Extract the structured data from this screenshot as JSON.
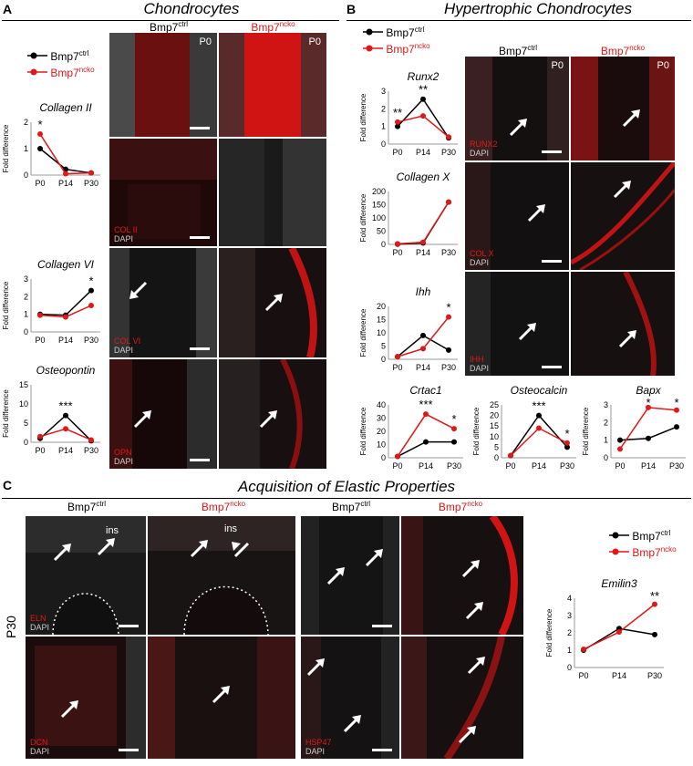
{
  "panels": {
    "A": {
      "letter": "A",
      "title": "Chondrocytes",
      "ctrl_label": "Bmp7",
      "ctrl_sup": "ctrl",
      "ncko_label": "Bmp7",
      "ncko_sup": "ncko",
      "p0": "P0"
    },
    "B": {
      "letter": "B",
      "title": "Hypertrophic Chondrocytes",
      "ctrl_label": "Bmp7",
      "ctrl_sup": "ctrl",
      "ncko_label": "Bmp7",
      "ncko_sup": "ncko",
      "p0": "P0"
    },
    "C": {
      "letter": "C",
      "title": "Acquisition of Elastic Properties",
      "ctrl_label": "Bmp7",
      "ctrl_sup": "ctrl",
      "ncko_label": "Bmp7",
      "ncko_sup": "ncko",
      "side": "P30",
      "ins": "ins"
    }
  },
  "legend": {
    "ctrl": "Bmp7",
    "ctrl_sup": "ctrl",
    "ncko": "Bmp7",
    "ncko_sup": "ncko"
  },
  "stains": {
    "col2": "COL II",
    "col6": "COL VI",
    "opn": "OPN",
    "runx2": "RUNX2",
    "col10": "COL X",
    "ihh": "IHH",
    "eln": "ELN",
    "dcn": "DCN",
    "hsp47": "HSP47",
    "dapi": "DAPI"
  },
  "colors": {
    "ctrl": "#000000",
    "ncko": "#e01818"
  },
  "chart_data": [
    {
      "id": "col2",
      "type": "line",
      "title": "Collagen II",
      "ylabel": "Fold difference",
      "categories": [
        "P0",
        "P14",
        "P30"
      ],
      "ylim": [
        0,
        2
      ],
      "yticks": [
        0,
        1,
        2
      ],
      "series": [
        {
          "name": "Bmp7ctrl",
          "values": [
            1.0,
            0.22,
            0.08
          ]
        },
        {
          "name": "Bmp7ncko",
          "values": [
            1.55,
            0.05,
            0.08
          ]
        }
      ],
      "annotations": [
        {
          "at": "P0",
          "text": "*"
        }
      ]
    },
    {
      "id": "col6",
      "type": "line",
      "title": "Collagen VI",
      "ylabel": "Fold difference",
      "categories": [
        "P0",
        "P14",
        "P30"
      ],
      "ylim": [
        0,
        3
      ],
      "yticks": [
        0,
        1,
        2,
        3
      ],
      "series": [
        {
          "name": "Bmp7ctrl",
          "values": [
            1.0,
            0.95,
            2.35
          ]
        },
        {
          "name": "Bmp7ncko",
          "values": [
            0.95,
            0.85,
            1.5
          ]
        }
      ],
      "annotations": [
        {
          "at": "P30",
          "text": "*"
        }
      ]
    },
    {
      "id": "opn",
      "type": "line",
      "title": "Osteopontin",
      "ylabel": "Fold difference",
      "categories": [
        "P0",
        "P14",
        "P30"
      ],
      "ylim": [
        0,
        15
      ],
      "yticks": [
        0,
        5,
        10,
        15
      ],
      "series": [
        {
          "name": "Bmp7ctrl",
          "values": [
            1.0,
            7.0,
            0.4
          ]
        },
        {
          "name": "Bmp7ncko",
          "values": [
            1.5,
            3.5,
            0.6
          ]
        }
      ],
      "annotations": [
        {
          "at": "P14",
          "text": "***"
        }
      ]
    },
    {
      "id": "runx2",
      "type": "line",
      "title": "Runx2",
      "ylabel": "Fold difference",
      "categories": [
        "P0",
        "P14",
        "P30"
      ],
      "ylim": [
        0,
        3
      ],
      "yticks": [
        0,
        1,
        2,
        3
      ],
      "series": [
        {
          "name": "Bmp7ctrl",
          "values": [
            1.0,
            2.55,
            0.35
          ]
        },
        {
          "name": "Bmp7ncko",
          "values": [
            1.25,
            1.6,
            0.4
          ]
        }
      ],
      "annotations": [
        {
          "at": "P0",
          "text": "**"
        },
        {
          "at": "P14",
          "text": "**"
        }
      ]
    },
    {
      "id": "col10",
      "type": "line",
      "title": "Collagen X",
      "ylabel": "Fold difference",
      "categories": [
        "P0",
        "P14",
        "P30"
      ],
      "ylim": [
        0,
        200
      ],
      "yticks": [
        0,
        50,
        100,
        150,
        200
      ],
      "series": [
        {
          "name": "Bmp7ctrl",
          "values": [
            1,
            5,
            160
          ]
        },
        {
          "name": "Bmp7ncko",
          "values": [
            2,
            8,
            160
          ]
        }
      ],
      "annotations": []
    },
    {
      "id": "ihh",
      "type": "line",
      "title": "Ihh",
      "ylabel": "Fold difference",
      "categories": [
        "P0",
        "P14",
        "P30"
      ],
      "ylim": [
        0,
        20
      ],
      "yticks": [
        0,
        5,
        10,
        15,
        20
      ],
      "series": [
        {
          "name": "Bmp7ctrl",
          "values": [
            1,
            9,
            3.5
          ]
        },
        {
          "name": "Bmp7ncko",
          "values": [
            1,
            4,
            16
          ]
        }
      ],
      "annotations": [
        {
          "at": "P30",
          "text": "*"
        }
      ]
    },
    {
      "id": "crtac1",
      "type": "line",
      "title": "Crtac1",
      "ylabel": "Fold difference",
      "categories": [
        "P0",
        "P14",
        "P30"
      ],
      "ylim": [
        0,
        40
      ],
      "yticks": [
        0,
        10,
        20,
        30,
        40
      ],
      "series": [
        {
          "name": "Bmp7ctrl",
          "values": [
            1,
            12,
            12
          ]
        },
        {
          "name": "Bmp7ncko",
          "values": [
            1,
            33,
            22
          ]
        }
      ],
      "annotations": [
        {
          "at": "P14",
          "text": "***"
        },
        {
          "at": "P30",
          "text": "*"
        }
      ]
    },
    {
      "id": "osteocalcin",
      "type": "line",
      "title": "Osteocalcin",
      "ylabel": "Fold difference",
      "categories": [
        "P0",
        "P14",
        "P30"
      ],
      "ylim": [
        0,
        25
      ],
      "yticks": [
        0,
        5,
        10,
        15,
        20,
        25
      ],
      "series": [
        {
          "name": "Bmp7ctrl",
          "values": [
            1,
            20,
            5
          ]
        },
        {
          "name": "Bmp7ncko",
          "values": [
            1,
            14,
            7
          ]
        }
      ],
      "annotations": [
        {
          "at": "P14",
          "text": "***"
        },
        {
          "at": "P30",
          "text": "*"
        }
      ]
    },
    {
      "id": "bapx",
      "type": "line",
      "title": "Bapx",
      "ylabel": "Fold difference",
      "categories": [
        "P0",
        "P14",
        "P30"
      ],
      "ylim": [
        0,
        3
      ],
      "yticks": [
        0,
        1,
        2,
        3
      ],
      "series": [
        {
          "name": "Bmp7ctrl",
          "values": [
            1.0,
            1.1,
            1.75
          ]
        },
        {
          "name": "Bmp7ncko",
          "values": [
            0.5,
            2.85,
            2.7
          ]
        }
      ],
      "annotations": [
        {
          "at": "P14",
          "text": "*"
        },
        {
          "at": "P30",
          "text": "*"
        }
      ]
    },
    {
      "id": "emilin3",
      "type": "line",
      "title": "Emilin3",
      "ylabel": "Fold difference",
      "categories": [
        "P0",
        "P14",
        "P30"
      ],
      "ylim": [
        0,
        4
      ],
      "yticks": [
        0,
        1,
        2,
        3,
        4
      ],
      "series": [
        {
          "name": "Bmp7ctrl",
          "values": [
            1.0,
            2.25,
            1.9
          ]
        },
        {
          "name": "Bmp7ncko",
          "values": [
            1.05,
            2.05,
            3.65
          ]
        }
      ],
      "annotations": [
        {
          "at": "P30",
          "text": "**"
        }
      ]
    }
  ]
}
